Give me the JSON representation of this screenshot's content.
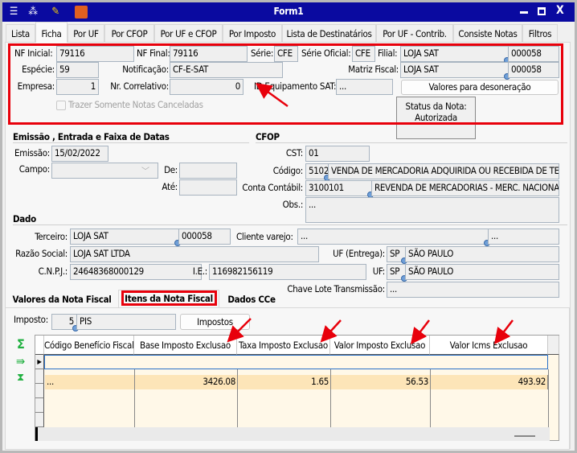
{
  "window": {
    "title": "Form1",
    "icons": [
      "menu-icon",
      "traffic-light-icon",
      "wrench-icon",
      "book-icon"
    ],
    "controls": [
      "minimize",
      "maximize",
      "close"
    ]
  },
  "tabs": [
    "Lista",
    "Ficha",
    "Por UF",
    "Por CFOP",
    "Por UF e CFOP",
    "Por Imposto",
    "Lista de Destinatários",
    "Por UF - Contrib.",
    "Consiste Notas",
    "Filtros"
  ],
  "active_tab": "Ficha",
  "header": {
    "nf_inicial_label": "NF Inicial:",
    "nf_inicial": "79116",
    "nf_final_label": "NF Final:",
    "nf_final": "79116",
    "serie_label": "Série:",
    "serie": "CFE",
    "serie_oficial_label": "Série Oficial:",
    "serie_oficial": "CFE",
    "filial_label": "Filial:",
    "filial_nome": "LOJA SAT",
    "filial_codigo": "000058",
    "especie_label": "Espécie:",
    "especie": "59",
    "notificacao_label": "Notificação:",
    "notificacao": "CF-E-SAT",
    "matriz_label": "Matriz Fiscal:",
    "matriz_nome": "LOJA SAT",
    "matriz_codigo": "000058",
    "empresa_label": "Empresa:",
    "empresa": "1",
    "correlativo_label": "Nr. Correlativo:",
    "correlativo": "0",
    "id_sat_label": "ID Equipamento SAT:",
    "id_sat": "...",
    "desoneracao_button": "Valores para desoneração",
    "canceladas_label": "Trazer Somente Notas Canceladas",
    "canceladas_checked": false,
    "status_label": "Status da Nota:",
    "status_value": "Autorizada"
  },
  "emissao": {
    "section": "Emissão , Entrada e Faixa de Datas",
    "emissao_label": "Emissão:",
    "emissao": "15/02/2022",
    "campo_label": "Campo:",
    "campo": "",
    "de_label": "De:",
    "de": "",
    "ate_label": "Até:",
    "ate": ""
  },
  "cfop": {
    "section": "CFOP",
    "cst_label": "CST:",
    "cst": "01",
    "codigo_label": "Código:",
    "codigo": "5102",
    "codigo_desc": "VENDA DE MERCADORIA ADQUIRIDA OU RECEBIDA DE TE",
    "conta_label": "Conta Contábil:",
    "conta": "3100101",
    "conta_desc": "REVENDA DE MERCADORIAS - MERC. NACIONAI",
    "obs_label": "Obs.:",
    "obs": "..."
  },
  "dado": {
    "section": "Dado",
    "terceiro_label": "Terceiro:",
    "terceiro": "LOJA SAT",
    "terceiro_codigo": "000058",
    "cliente_label": "Cliente varejo:",
    "cliente": "...",
    "cliente_codigo": "...",
    "razao_label": "Razão Social:",
    "razao": "LOJA SAT LTDA",
    "uf_entrega_label": "UF (Entrega):",
    "uf_entrega": "SP",
    "uf_entrega_nome": "SÃO PAULO",
    "cnpj_label": "C.N.P.J.:",
    "cnpj": "24648368000129",
    "ie_label": "I.E.:",
    "ie": "116982156119",
    "uf_label": "UF:",
    "uf": "SP",
    "uf_nome": "SÃO PAULO",
    "chave_label": "Chave Lote Transmissão:",
    "chave": "..."
  },
  "subtabs": [
    "Valores da Nota Fiscal",
    "Itens da Nota Fiscal",
    "Dados CCe"
  ],
  "active_subtab": "Itens da Nota Fiscal",
  "itens": {
    "imposto_label": "Imposto:",
    "imposto_codigo": "5",
    "imposto_nome": "PIS",
    "impostos_button": "Impostos",
    "side_icons": [
      "sigma-icon",
      "export-icon",
      "filter-down-icon"
    ],
    "columns": [
      "Código Benefício Fiscal",
      "Base Imposto Exclusao",
      "Taxa Imposto Exclusao",
      "Valor Imposto Exclusao",
      "Valor Icms Exclusao"
    ],
    "rows": [
      [
        "...",
        "3426.08",
        "1.65",
        "56.53",
        "493.92"
      ]
    ]
  },
  "colors": {
    "title_bar": "#0a0aa0",
    "highlight": "#e8000b",
    "selected_row": "#fde5b8"
  }
}
